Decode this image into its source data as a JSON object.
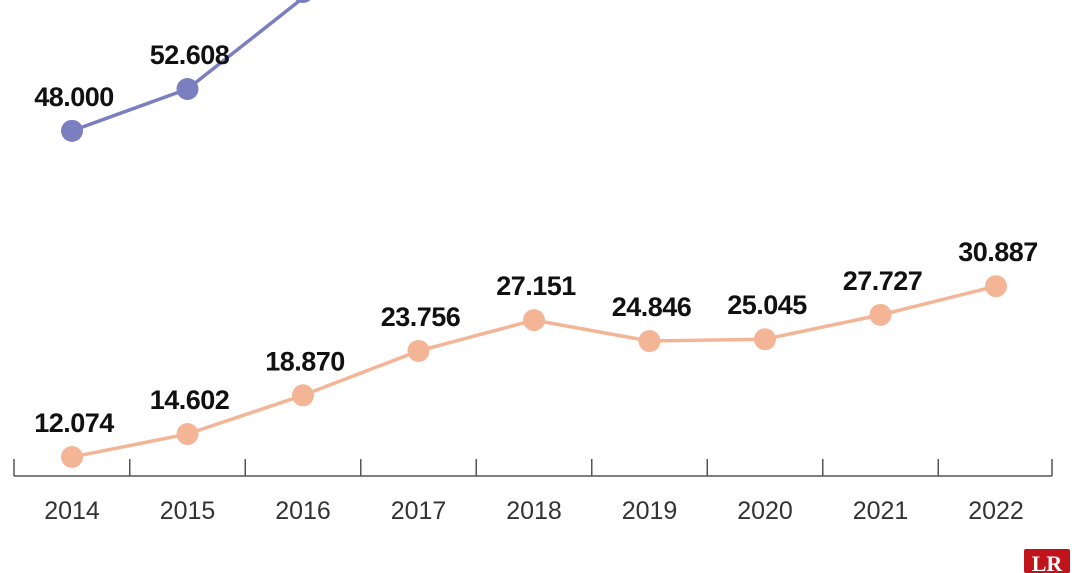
{
  "chart_data": {
    "type": "line",
    "categories": [
      "2014",
      "2015",
      "2016",
      "2017",
      "2018",
      "2019",
      "2020",
      "2021",
      "2022"
    ],
    "series": [
      {
        "color": "#7b7fbf",
        "values": [
          48000,
          52608,
          null,
          null,
          null,
          null,
          null,
          null,
          null
        ],
        "labels": [
          "48.000",
          "52.608",
          "",
          "",
          "",
          "",
          "",
          "",
          ""
        ]
      },
      {
        "color": "#f3b596",
        "values": [
          12074,
          14602,
          18870,
          23756,
          27151,
          24846,
          25045,
          27727,
          30887
        ],
        "labels": [
          "12.074",
          "14.602",
          "18.870",
          "23.756",
          "27.151",
          "24.846",
          "25.045",
          "27.727",
          "30.887"
        ]
      }
    ],
    "grid": false,
    "axis_color": "#555555"
  },
  "logo": {
    "text": "LR",
    "color": "#c0141c"
  }
}
